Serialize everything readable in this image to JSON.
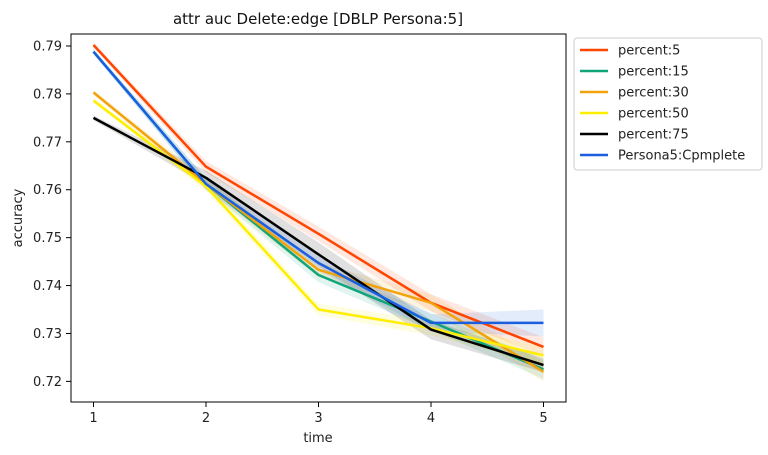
{
  "chart_data": {
    "type": "line",
    "title": "attr auc Delete:edge [DBLP Persona:5]",
    "xlabel": "time",
    "ylabel": "accuracy",
    "x": [
      1,
      2,
      3,
      4,
      5
    ],
    "xlim": [
      0.8,
      5.2
    ],
    "ylim": [
      0.7157,
      0.7925
    ],
    "xticks": [
      1,
      2,
      3,
      4,
      5
    ],
    "yticks": [
      0.72,
      0.73,
      0.74,
      0.75,
      0.76,
      0.77,
      0.78,
      0.79
    ],
    "grid": false,
    "legend_position": "outside-right",
    "series": [
      {
        "name": "percent:5",
        "color": "#ff4500",
        "values": [
          0.7902,
          0.7648,
          0.7508,
          0.7364,
          0.7272
        ],
        "band": [
          0.0005,
          0.0012,
          0.0015,
          0.0018,
          0.002
        ]
      },
      {
        "name": "percent:15",
        "color": "#11a67a",
        "values": [
          0.7888,
          0.7612,
          0.7422,
          0.7325,
          0.7225
        ],
        "band": [
          0.0005,
          0.0012,
          0.0015,
          0.0018,
          0.002
        ]
      },
      {
        "name": "percent:30",
        "color": "#f2a20b",
        "values": [
          0.7803,
          0.7612,
          0.7433,
          0.7364,
          0.722
        ],
        "band": [
          0.0005,
          0.0012,
          0.0015,
          0.0018,
          0.002
        ]
      },
      {
        "name": "percent:50",
        "color": "#ffee00",
        "values": [
          0.7786,
          0.7607,
          0.735,
          0.7311,
          0.7254
        ],
        "band": [
          0.0005,
          0.001,
          0.0012,
          0.0015,
          0.0018
        ]
      },
      {
        "name": "percent:75",
        "color": "#000000",
        "values": [
          0.775,
          0.7625,
          0.7465,
          0.7308,
          0.7234
        ],
        "band": [
          0.0005,
          0.0015,
          0.0025,
          0.002,
          0.0015
        ]
      },
      {
        "name": "Persona5:Cpmplete",
        "color": "#1a5fe0",
        "values": [
          0.7888,
          0.7612,
          0.7447,
          0.7322,
          0.7322
        ],
        "band": [
          0.0005,
          0.0012,
          0.0015,
          0.0018,
          0.0028
        ]
      }
    ]
  }
}
